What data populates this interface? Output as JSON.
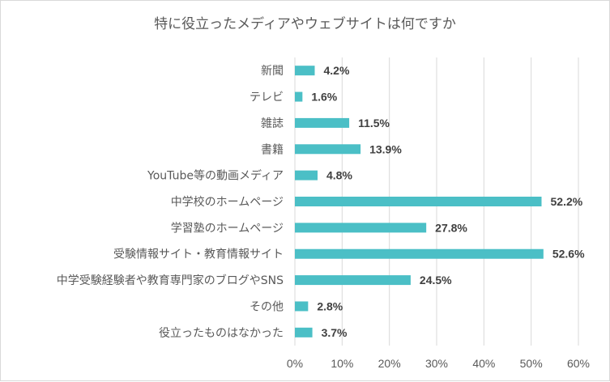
{
  "chart_data": {
    "type": "bar",
    "orientation": "horizontal",
    "title": "特に役立ったメディアやウェブサイトは何ですか",
    "categories": [
      "新聞",
      "テレビ",
      "雑誌",
      "書籍",
      "YouTube等の動画メディア",
      "中学校のホームページ",
      "学習塾のホームページ",
      "受験情報サイト・教育情報サイト",
      "中学受験経験者や教育専門家のブログやSNS",
      "その他",
      "役立ったものはなかった"
    ],
    "values": [
      4.2,
      1.6,
      11.5,
      13.9,
      4.8,
      52.2,
      27.8,
      52.6,
      24.5,
      2.8,
      3.7
    ],
    "value_labels": [
      "4.2%",
      "1.6%",
      "11.5%",
      "13.9%",
      "4.8%",
      "52.2%",
      "27.8%",
      "52.6%",
      "24.5%",
      "2.8%",
      "3.7%"
    ],
    "xlim": [
      0,
      60
    ],
    "xticks": [
      "0%",
      "10%",
      "20%",
      "30%",
      "40%",
      "50%",
      "60%"
    ],
    "grid": true,
    "bar_color": "#4bbfc6",
    "grid_color": "#d9d9d9"
  }
}
